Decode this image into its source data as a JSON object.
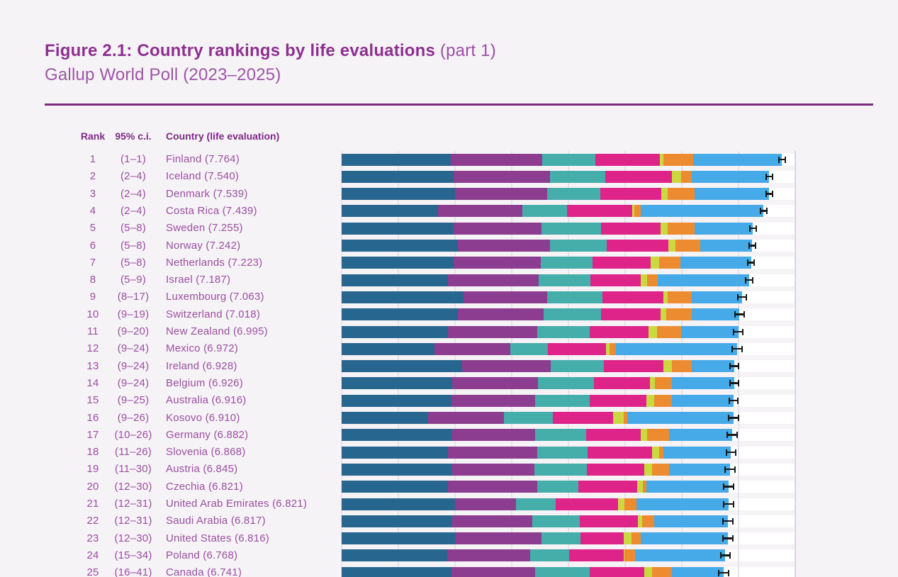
{
  "figure": {
    "title": "Figure 2.1: Country rankings by life evaluations",
    "title_suffix": " (part 1)",
    "subtitle": "Gallup World Poll (2023–2025)"
  },
  "table_header": {
    "rank": "Rank",
    "ci": "95% c.i.",
    "country": "Country (life evaluation)"
  },
  "colors": {
    "background": "#f6f3f7",
    "title": "#8e2f8f",
    "subtitle": "#9d55a6",
    "rule": "#7e2c82",
    "header_text": "#7c2a84",
    "row_text": "#9a4fa0",
    "gridline": "#e9e2ec",
    "axis_right_line": "#ddd3e1",
    "row_track": "#ffffff",
    "error_bar": "#191919"
  },
  "chart_data": {
    "type": "bar",
    "orientation": "horizontal",
    "stacked": true,
    "x_min": 0,
    "x_max": 8,
    "gridline_interval": 1,
    "grid": true,
    "legend_visible": false,
    "segment_color_names": [
      "dark-blue",
      "purple",
      "teal",
      "magenta",
      "lime",
      "orange",
      "light-blue"
    ],
    "segment_colors": [
      "#27678f",
      "#8c3d90",
      "#45adaa",
      "#de2489",
      "#cbd941",
      "#ec8b30",
      "#46aae8"
    ],
    "rows": [
      {
        "rank": "1",
        "ci_rank": "(1–1)",
        "country": "Finland",
        "score": "7.764",
        "segments": [
          1.92,
          1.62,
          0.94,
          1.13,
          0.07,
          0.52,
          1.564
        ],
        "ci_half": 0.07
      },
      {
        "rank": "2",
        "ci_rank": "(2–4)",
        "country": "Iceland",
        "score": "7.540",
        "segments": [
          1.97,
          1.7,
          0.98,
          1.17,
          0.17,
          0.18,
          1.37
        ],
        "ci_half": 0.07
      },
      {
        "rank": "3",
        "ci_rank": "(2–4)",
        "country": "Denmark",
        "score": "7.539",
        "segments": [
          2.0,
          1.63,
          0.93,
          1.08,
          0.11,
          0.48,
          1.309
        ],
        "ci_half": 0.07
      },
      {
        "rank": "4",
        "ci_rank": "(2–4)",
        "country": "Costa Rica",
        "score": "7.439",
        "segments": [
          1.7,
          1.49,
          0.78,
          1.15,
          0.04,
          0.11,
          2.169
        ],
        "ci_half": 0.07
      },
      {
        "rank": "5",
        "ci_rank": "(5–8)",
        "country": "Sweden",
        "score": "7.255",
        "segments": [
          1.97,
          1.56,
          1.04,
          1.06,
          0.12,
          0.48,
          1.025
        ],
        "ci_half": 0.07
      },
      {
        "rank": "6",
        "ci_rank": "(5–8)",
        "country": "Norway",
        "score": "7.242",
        "segments": [
          2.05,
          1.63,
          0.99,
          1.09,
          0.13,
          0.44,
          0.912
        ],
        "ci_half": 0.07
      },
      {
        "rank": "7",
        "ci_rank": "(5–8)",
        "country": "Netherlands",
        "score": "7.223",
        "segments": [
          1.98,
          1.53,
          0.92,
          1.02,
          0.15,
          0.38,
          1.243
        ],
        "ci_half": 0.07
      },
      {
        "rank": "8",
        "ci_rank": "(5–9)",
        "country": "Israel",
        "score": "7.187",
        "segments": [
          1.88,
          1.59,
          0.92,
          0.89,
          0.11,
          0.18,
          1.617
        ],
        "ci_half": 0.07
      },
      {
        "rank": "9",
        "ci_rank": "(8–17)",
        "country": "Luxembourg",
        "score": "7.063",
        "segments": [
          2.15,
          1.48,
          0.97,
          1.07,
          0.08,
          0.42,
          0.893
        ],
        "ci_half": 0.09
      },
      {
        "rank": "10",
        "ci_rank": "(9–19)",
        "country": "Switzerland",
        "score": "7.018",
        "segments": [
          2.05,
          1.51,
          1.02,
          1.04,
          0.11,
          0.44,
          0.848
        ],
        "ci_half": 0.09
      },
      {
        "rank": "11",
        "ci_rank": "(9–20)",
        "country": "New Zealand",
        "score": "6.995",
        "segments": [
          1.87,
          1.58,
          0.93,
          1.03,
          0.15,
          0.43,
          1.005
        ],
        "ci_half": 0.09
      },
      {
        "rank": "12",
        "ci_rank": "(9–24)",
        "country": "Mexico",
        "score": "6.972",
        "segments": [
          1.64,
          1.34,
          0.66,
          1.02,
          0.07,
          0.11,
          2.132
        ],
        "ci_half": 0.1
      },
      {
        "rank": "13",
        "ci_rank": "(9–24)",
        "country": "Ireland",
        "score": "6.928",
        "segments": [
          2.13,
          1.56,
          0.93,
          1.05,
          0.15,
          0.36,
          0.748
        ],
        "ci_half": 0.09
      },
      {
        "rank": "14",
        "ci_rank": "(9–24)",
        "country": "Belgium",
        "score": "6.926",
        "segments": [
          1.95,
          1.51,
          0.99,
          0.99,
          0.08,
          0.3,
          1.106
        ],
        "ci_half": 0.09
      },
      {
        "rank": "15",
        "ci_rank": "(9–25)",
        "country": "Australia",
        "score": "6.916",
        "segments": [
          1.94,
          1.47,
          0.96,
          1.01,
          0.13,
          0.31,
          1.096
        ],
        "ci_half": 0.09
      },
      {
        "rank": "16",
        "ci_rank": "(9–26)",
        "country": "Kosovo",
        "score": "6.910",
        "segments": [
          1.53,
          1.33,
          0.86,
          1.07,
          0.18,
          0.07,
          1.87
        ],
        "ci_half": 0.1
      },
      {
        "rank": "17",
        "ci_rank": "(10–26)",
        "country": "Germany",
        "score": "6.882",
        "segments": [
          1.95,
          1.46,
          0.9,
          0.96,
          0.12,
          0.38,
          1.112
        ],
        "ci_half": 0.1
      },
      {
        "rank": "18",
        "ci_rank": "(11–26)",
        "country": "Slovenia",
        "score": "6.868",
        "segments": [
          1.88,
          1.57,
          0.89,
          1.14,
          0.12,
          0.07,
          1.198
        ],
        "ci_half": 0.09
      },
      {
        "rank": "19",
        "ci_rank": "(11–30)",
        "country": "Austria",
        "score": "6.845",
        "segments": [
          1.95,
          1.45,
          0.93,
          1.01,
          0.14,
          0.29,
          1.075
        ],
        "ci_half": 0.1
      },
      {
        "rank": "20",
        "ci_rank": "(12–30)",
        "country": "Czechia",
        "score": "6.821",
        "segments": [
          1.88,
          1.57,
          0.72,
          1.04,
          0.1,
          0.07,
          1.441
        ],
        "ci_half": 0.1
      },
      {
        "rank": "21",
        "ci_rank": "(12–31)",
        "country": "United Arab Emirates",
        "score": "6.821",
        "segments": [
          2.0,
          1.07,
          0.71,
          1.1,
          0.11,
          0.21,
          1.621
        ],
        "ci_half": 0.1
      },
      {
        "rank": "22",
        "ci_rank": "(12–31)",
        "country": "Saudi Arabia",
        "score": "6.817",
        "segments": [
          1.95,
          1.41,
          0.84,
          1.03,
          0.07,
          0.21,
          1.307
        ],
        "ci_half": 0.1
      },
      {
        "rank": "23",
        "ci_rank": "(12–30)",
        "country": "United States",
        "score": "6.816",
        "segments": [
          2.01,
          1.51,
          0.69,
          0.76,
          0.14,
          0.17,
          1.536
        ],
        "ci_half": 0.1
      },
      {
        "rank": "24",
        "ci_rank": "(15–34)",
        "country": "Poland",
        "score": "6.768",
        "segments": [
          1.86,
          1.47,
          0.68,
          0.96,
          0.02,
          0.18,
          1.598
        ],
        "ci_half": 0.09
      },
      {
        "rank": "25",
        "ci_rank": "(16–41)",
        "country": "Canada",
        "score": "6.741",
        "segments": [
          1.94,
          1.47,
          0.96,
          0.97,
          0.14,
          0.34,
          0.921
        ],
        "ci_half": 0.1
      }
    ]
  }
}
